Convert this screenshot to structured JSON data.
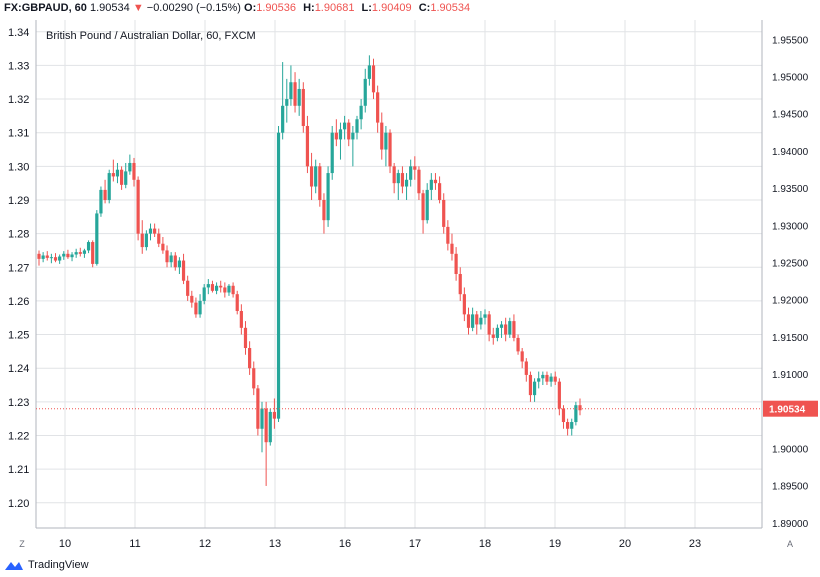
{
  "header": {
    "symbol": "FX:GBPAUD, 60",
    "last": "1.90534",
    "change": "−0.00290 (−0.15%)",
    "open_label": "O:",
    "open": "1.90536",
    "high_label": "H:",
    "high": "1.90681",
    "low_label": "L:",
    "low": "1.90409",
    "close_label": "C:",
    "close": "1.90534"
  },
  "chart_title": "British Pound / Australian Dollar, 60, FXCM",
  "footer": {
    "brand": "TradingView",
    "scale_left": "Z",
    "scale_right": "A"
  },
  "colors": {
    "up": "#26a69a",
    "down": "#ef5350",
    "grid": "#e1e3e6",
    "price_tag": "#ef5350"
  },
  "chart_data": {
    "type": "candlestick",
    "title": "British Pound / Australian Dollar, 60, FXCM",
    "left_axis": {
      "ticks": [
        1.2,
        1.21,
        1.22,
        1.23,
        1.24,
        1.25,
        1.26,
        1.27,
        1.28,
        1.29,
        1.3,
        1.31,
        1.32,
        1.33,
        1.34
      ],
      "range": [
        1.1925,
        1.3435
      ]
    },
    "right_axis": {
      "ticks": [
        1.89,
        1.895,
        1.9,
        1.905,
        1.91,
        1.915,
        1.92,
        1.925,
        1.93,
        1.935,
        1.94,
        1.945,
        1.95,
        1.955
      ],
      "tick_labels": [
        "1.89000",
        "1.89500",
        "1.90000",
        "1.90500",
        "1.91000",
        "1.91500",
        "1.92000",
        "1.92500",
        "1.93000",
        "1.93500",
        "1.94000",
        "1.94500",
        "1.95000",
        "1.95500"
      ],
      "range": [
        1.8893,
        1.9576
      ]
    },
    "x_labels": [
      "10",
      "11",
      "12",
      "13",
      "16",
      "17",
      "18",
      "19",
      "20",
      "23"
    ],
    "current_price": 1.90534,
    "current_price_label": "1.90534",
    "grid": true,
    "candles": [
      [
        1.274,
        1.275,
        1.2705,
        1.2725
      ],
      [
        1.2725,
        1.2745,
        1.2715,
        1.2735
      ],
      [
        1.2735,
        1.2748,
        1.272,
        1.2728
      ],
      [
        1.2728,
        1.274,
        1.2712,
        1.273
      ],
      [
        1.273,
        1.2742,
        1.2715,
        1.272
      ],
      [
        1.272,
        1.2738,
        1.271,
        1.2732
      ],
      [
        1.2732,
        1.2748,
        1.2722,
        1.274
      ],
      [
        1.274,
        1.2752,
        1.2725,
        1.273
      ],
      [
        1.273,
        1.2745,
        1.2718,
        1.2738
      ],
      [
        1.2738,
        1.2755,
        1.2728,
        1.2745
      ],
      [
        1.2745,
        1.2758,
        1.2732,
        1.274
      ],
      [
        1.274,
        1.2755,
        1.2728,
        1.275
      ],
      [
        1.275,
        1.278,
        1.2742,
        1.2775
      ],
      [
        1.2775,
        1.278,
        1.27,
        1.271
      ],
      [
        1.271,
        1.287,
        1.2705,
        1.286
      ],
      [
        1.286,
        1.294,
        1.285,
        1.293
      ],
      [
        1.293,
        1.296,
        1.289,
        1.29
      ],
      [
        1.29,
        1.299,
        1.289,
        1.298
      ],
      [
        1.298,
        1.302,
        1.2955,
        1.297
      ],
      [
        1.297,
        1.301,
        1.295,
        1.299
      ],
      [
        1.299,
        1.3,
        1.293,
        1.2945
      ],
      [
        1.2945,
        1.301,
        1.2935,
        1.2985
      ],
      [
        1.2985,
        1.3035,
        1.2975,
        1.301
      ],
      [
        1.301,
        1.3025,
        1.294,
        1.296
      ],
      [
        1.296,
        1.297,
        1.278,
        1.28
      ],
      [
        1.28,
        1.284,
        1.274,
        1.276
      ],
      [
        1.276,
        1.281,
        1.275,
        1.28
      ],
      [
        1.28,
        1.283,
        1.278,
        1.2815
      ],
      [
        1.2815,
        1.283,
        1.279,
        1.28
      ],
      [
        1.28,
        1.2815,
        1.276,
        1.277
      ],
      [
        1.277,
        1.279,
        1.274,
        1.275
      ],
      [
        1.275,
        1.2765,
        1.27,
        1.2715
      ],
      [
        1.2715,
        1.2745,
        1.27,
        1.2735
      ],
      [
        1.2735,
        1.2745,
        1.269,
        1.27
      ],
      [
        1.27,
        1.273,
        1.268,
        1.272
      ],
      [
        1.272,
        1.274,
        1.265,
        1.266
      ],
      [
        1.266,
        1.2675,
        1.26,
        1.2615
      ],
      [
        1.2615,
        1.263,
        1.258,
        1.2595
      ],
      [
        1.2595,
        1.261,
        1.255,
        1.256
      ],
      [
        1.256,
        1.262,
        1.255,
        1.26
      ],
      [
        1.26,
        1.265,
        1.259,
        1.264
      ],
      [
        1.264,
        1.2665,
        1.262,
        1.265
      ],
      [
        1.265,
        1.266,
        1.2625,
        1.263
      ],
      [
        1.263,
        1.2655,
        1.262,
        1.2645
      ],
      [
        1.2645,
        1.266,
        1.2625,
        1.264
      ],
      [
        1.264,
        1.2655,
        1.261,
        1.2625
      ],
      [
        1.2625,
        1.265,
        1.2615,
        1.2645
      ],
      [
        1.2645,
        1.2655,
        1.261,
        1.262
      ],
      [
        1.262,
        1.263,
        1.256,
        1.257
      ],
      [
        1.257,
        1.259,
        1.25,
        1.252
      ],
      [
        1.252,
        1.254,
        1.244,
        1.246
      ],
      [
        1.246,
        1.248,
        1.238,
        1.24
      ],
      [
        1.24,
        1.242,
        1.232,
        1.234
      ],
      [
        1.234,
        1.235,
        1.22,
        1.222
      ],
      [
        1.222,
        1.23,
        1.215,
        1.228
      ],
      [
        1.228,
        1.23,
        1.205,
        1.218
      ],
      [
        1.218,
        1.228,
        1.217,
        1.227
      ],
      [
        1.227,
        1.231,
        1.222,
        1.225
      ],
      [
        1.225,
        1.312,
        1.224,
        1.31
      ],
      [
        1.31,
        1.331,
        1.308,
        1.318
      ],
      [
        1.318,
        1.326,
        1.313,
        1.32
      ],
      [
        1.32,
        1.33,
        1.318,
        1.325
      ],
      [
        1.325,
        1.328,
        1.316,
        1.318
      ],
      [
        1.318,
        1.326,
        1.315,
        1.323
      ],
      [
        1.323,
        1.325,
        1.31,
        1.312
      ],
      [
        1.312,
        1.315,
        1.298,
        1.3
      ],
      [
        1.3,
        1.304,
        1.29,
        1.294
      ],
      [
        1.294,
        1.302,
        1.292,
        1.3
      ],
      [
        1.3,
        1.301,
        1.288,
        1.29
      ],
      [
        1.29,
        1.292,
        1.28,
        1.284
      ],
      [
        1.284,
        1.3,
        1.282,
        1.298
      ],
      [
        1.298,
        1.312,
        1.296,
        1.31
      ],
      [
        1.31,
        1.314,
        1.306,
        1.308
      ],
      [
        1.308,
        1.313,
        1.302,
        1.311
      ],
      [
        1.311,
        1.315,
        1.308,
        1.313
      ],
      [
        1.313,
        1.314,
        1.306,
        1.308
      ],
      [
        1.308,
        1.312,
        1.3,
        1.31
      ],
      [
        1.31,
        1.315,
        1.308,
        1.314
      ],
      [
        1.314,
        1.32,
        1.311,
        1.318
      ],
      [
        1.318,
        1.329,
        1.316,
        1.326
      ],
      [
        1.326,
        1.333,
        1.324,
        1.33
      ],
      [
        1.33,
        1.332,
        1.32,
        1.322
      ],
      [
        1.322,
        1.324,
        1.31,
        1.313
      ],
      [
        1.313,
        1.316,
        1.302,
        1.305
      ],
      [
        1.305,
        1.312,
        1.3,
        1.31
      ],
      [
        1.31,
        1.311,
        1.298,
        1.3
      ],
      [
        1.3,
        1.301,
        1.292,
        1.295
      ],
      [
        1.295,
        1.299,
        1.29,
        1.298
      ],
      [
        1.298,
        1.3,
        1.292,
        1.294
      ],
      [
        1.294,
        1.298,
        1.29,
        1.296
      ],
      [
        1.296,
        1.302,
        1.294,
        1.3
      ],
      [
        1.3,
        1.303,
        1.296,
        1.299
      ],
      [
        1.299,
        1.3,
        1.29,
        1.292
      ],
      [
        1.292,
        1.293,
        1.28,
        1.284
      ],
      [
        1.284,
        1.295,
        1.283,
        1.293
      ],
      [
        1.293,
        1.298,
        1.29,
        1.296
      ],
      [
        1.296,
        1.298,
        1.293,
        1.295
      ],
      [
        1.295,
        1.297,
        1.289,
        1.29
      ],
      [
        1.29,
        1.292,
        1.28,
        1.282
      ],
      [
        1.282,
        1.284,
        1.275,
        1.277
      ],
      [
        1.277,
        1.28,
        1.272,
        1.274
      ],
      [
        1.274,
        1.276,
        1.266,
        1.268
      ],
      [
        1.268,
        1.27,
        1.26,
        1.262
      ],
      [
        1.262,
        1.264,
        1.254,
        1.256
      ],
      [
        1.256,
        1.258,
        1.25,
        1.252
      ],
      [
        1.252,
        1.258,
        1.251,
        1.256
      ],
      [
        1.256,
        1.257,
        1.25,
        1.253
      ],
      [
        1.253,
        1.257,
        1.2515,
        1.255
      ],
      [
        1.255,
        1.2575,
        1.253,
        1.256
      ],
      [
        1.256,
        1.257,
        1.248,
        1.25
      ],
      [
        1.25,
        1.252,
        1.247,
        1.249
      ],
      [
        1.249,
        1.253,
        1.248,
        1.252
      ],
      [
        1.252,
        1.254,
        1.249,
        1.253
      ],
      [
        1.253,
        1.255,
        1.248,
        1.25
      ],
      [
        1.25,
        1.255,
        1.249,
        1.254
      ],
      [
        1.254,
        1.256,
        1.248,
        1.249
      ],
      [
        1.249,
        1.25,
        1.244,
        1.245
      ],
      [
        1.245,
        1.246,
        1.24,
        1.242
      ],
      [
        1.242,
        1.243,
        1.236,
        1.238
      ],
      [
        1.238,
        1.239,
        1.23,
        1.232
      ],
      [
        1.232,
        1.237,
        1.23,
        1.236
      ],
      [
        1.236,
        1.239,
        1.234,
        1.237
      ],
      [
        1.237,
        1.239,
        1.235,
        1.238
      ],
      [
        1.238,
        1.239,
        1.235,
        1.236
      ],
      [
        1.236,
        1.2385,
        1.2345,
        1.2375
      ],
      [
        1.2375,
        1.239,
        1.235,
        1.236
      ],
      [
        1.236,
        1.237,
        1.226,
        1.228
      ],
      [
        1.228,
        1.229,
        1.222,
        1.224
      ],
      [
        1.224,
        1.225,
        1.22,
        1.222
      ],
      [
        1.222,
        1.225,
        1.22,
        1.224
      ],
      [
        1.224,
        1.23,
        1.223,
        1.229
      ],
      [
        1.229,
        1.231,
        1.226,
        1.2275
      ]
    ]
  }
}
